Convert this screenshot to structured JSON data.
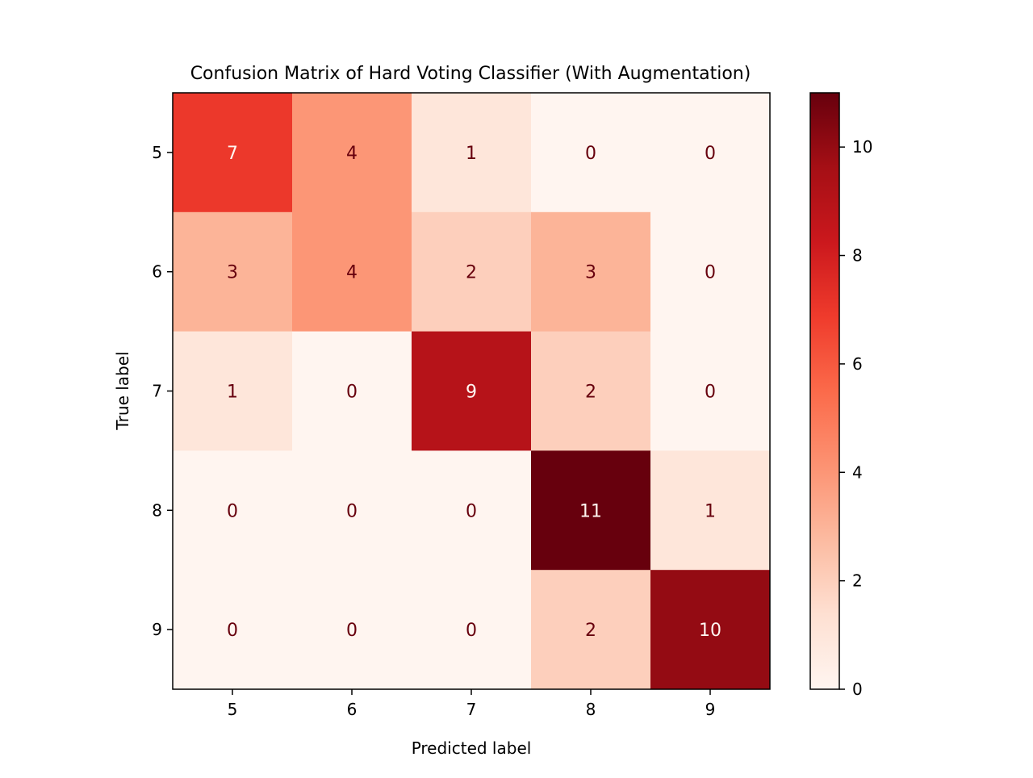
{
  "chart_data": {
    "type": "heatmap",
    "title": "Confusion Matrix of Hard Voting Classifier (With Augmentation)",
    "xlabel": "Predicted label",
    "ylabel": "True label",
    "x_categories": [
      "5",
      "6",
      "7",
      "8",
      "9"
    ],
    "y_categories": [
      "5",
      "6",
      "7",
      "8",
      "9"
    ],
    "values": [
      [
        7,
        4,
        1,
        0,
        0
      ],
      [
        3,
        4,
        2,
        3,
        0
      ],
      [
        1,
        0,
        9,
        2,
        0
      ],
      [
        0,
        0,
        0,
        11,
        1
      ],
      [
        0,
        0,
        0,
        2,
        10
      ]
    ],
    "colormap": "Reds",
    "vmin": 0,
    "vmax": 11,
    "colorbar": {
      "ticks": [
        0,
        2,
        4,
        6,
        8,
        10
      ],
      "tick_labels": [
        "0",
        "2",
        "4",
        "6",
        "8",
        "10"
      ]
    },
    "text_colors": {
      "dark": "#67000d",
      "light": "#fff5f0"
    }
  }
}
